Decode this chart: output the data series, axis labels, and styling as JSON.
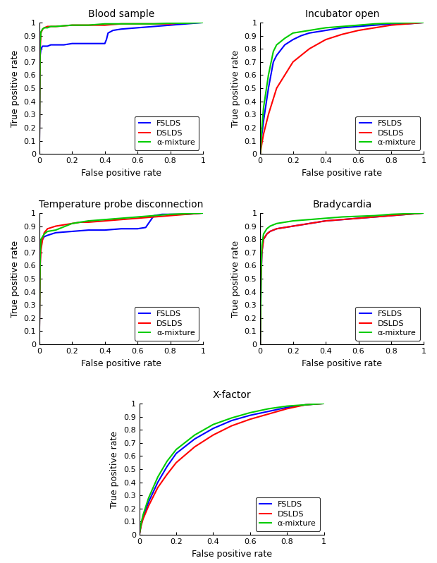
{
  "titles": [
    "Blood sample",
    "Incubator open",
    "Temperature probe disconnection",
    "Bradycardia",
    "X-factor"
  ],
  "colors": {
    "FSLDS": "#0000ff",
    "DSLDS": "#ff0000",
    "alpha_mixture": "#00cc00"
  },
  "legend_labels": [
    "FSLDS",
    "DSLDS",
    "α-mixture"
  ],
  "xlabel": "False positive rate",
  "ylabel": "True positive rate",
  "blood_sample": {
    "FSLDS": {
      "fpr": [
        0,
        0.005,
        0.01,
        0.02,
        0.03,
        0.05,
        0.07,
        0.1,
        0.15,
        0.2,
        0.3,
        0.4,
        0.41,
        0.42,
        0.45,
        0.5,
        0.6,
        0.7,
        0.8,
        0.9,
        1.0
      ],
      "tpr": [
        0,
        0.75,
        0.8,
        0.82,
        0.82,
        0.82,
        0.83,
        0.83,
        0.83,
        0.84,
        0.84,
        0.84,
        0.87,
        0.92,
        0.94,
        0.95,
        0.96,
        0.97,
        0.98,
        0.99,
        1.0
      ]
    },
    "DSLDS": {
      "fpr": [
        0,
        0.005,
        0.01,
        0.02,
        0.03,
        0.05,
        0.1,
        0.2,
        0.3,
        0.4,
        0.5,
        0.6,
        0.7,
        0.8,
        0.9,
        1.0
      ],
      "tpr": [
        0,
        0.8,
        0.92,
        0.95,
        0.96,
        0.97,
        0.97,
        0.98,
        0.98,
        0.98,
        0.99,
        0.99,
        0.99,
        0.99,
        1.0,
        1.0
      ]
    },
    "alpha_mixture": {
      "fpr": [
        0,
        0.005,
        0.01,
        0.02,
        0.03,
        0.05,
        0.07,
        0.1,
        0.2,
        0.3,
        0.4,
        0.5,
        0.6,
        0.7,
        0.8,
        0.9,
        1.0
      ],
      "tpr": [
        0,
        0.85,
        0.93,
        0.95,
        0.96,
        0.96,
        0.97,
        0.97,
        0.98,
        0.98,
        0.99,
        0.99,
        0.99,
        0.99,
        0.995,
        0.995,
        1.0
      ]
    }
  },
  "incubator_open": {
    "FSLDS": {
      "fpr": [
        0,
        0.01,
        0.02,
        0.05,
        0.08,
        0.1,
        0.15,
        0.2,
        0.25,
        0.3,
        0.4,
        0.5,
        0.6,
        0.7,
        0.8,
        0.9,
        1.0
      ],
      "tpr": [
        0,
        0.15,
        0.25,
        0.5,
        0.7,
        0.75,
        0.83,
        0.87,
        0.9,
        0.92,
        0.94,
        0.96,
        0.97,
        0.98,
        0.99,
        0.99,
        1.0
      ]
    },
    "DSLDS": {
      "fpr": [
        0,
        0.01,
        0.02,
        0.05,
        0.1,
        0.2,
        0.3,
        0.4,
        0.5,
        0.6,
        0.7,
        0.8,
        0.9,
        1.0
      ],
      "tpr": [
        0,
        0.08,
        0.15,
        0.3,
        0.5,
        0.7,
        0.8,
        0.87,
        0.91,
        0.94,
        0.96,
        0.98,
        0.99,
        1.0
      ]
    },
    "alpha_mixture": {
      "fpr": [
        0,
        0.005,
        0.01,
        0.02,
        0.05,
        0.08,
        0.1,
        0.15,
        0.2,
        0.3,
        0.4,
        0.5,
        0.6,
        0.7,
        0.8,
        0.9,
        1.0
      ],
      "tpr": [
        0,
        0.1,
        0.2,
        0.35,
        0.6,
        0.78,
        0.83,
        0.88,
        0.92,
        0.94,
        0.96,
        0.97,
        0.98,
        0.99,
        0.995,
        0.998,
        1.0
      ]
    }
  },
  "temp_probe": {
    "FSLDS": {
      "fpr": [
        0,
        0.005,
        0.01,
        0.02,
        0.03,
        0.05,
        0.1,
        0.2,
        0.3,
        0.4,
        0.5,
        0.6,
        0.65,
        0.7,
        0.75,
        0.8,
        0.9,
        1.0
      ],
      "tpr": [
        0.05,
        0.65,
        0.78,
        0.8,
        0.82,
        0.83,
        0.85,
        0.86,
        0.87,
        0.87,
        0.88,
        0.88,
        0.89,
        0.98,
        0.99,
        0.99,
        0.99,
        1.0
      ]
    },
    "DSLDS": {
      "fpr": [
        0,
        0.005,
        0.01,
        0.02,
        0.03,
        0.05,
        0.1,
        0.15,
        0.2,
        0.25,
        0.3,
        0.4,
        0.5,
        0.6,
        0.7,
        0.8,
        0.9,
        1.0
      ],
      "tpr": [
        0.05,
        0.6,
        0.72,
        0.8,
        0.85,
        0.88,
        0.9,
        0.91,
        0.92,
        0.93,
        0.93,
        0.94,
        0.95,
        0.96,
        0.97,
        0.98,
        0.99,
        1.0
      ]
    },
    "alpha_mixture": {
      "fpr": [
        0,
        0.005,
        0.01,
        0.02,
        0.03,
        0.05,
        0.1,
        0.2,
        0.3,
        0.4,
        0.5,
        0.6,
        0.7,
        0.8,
        0.9,
        1.0
      ],
      "tpr": [
        0.05,
        0.68,
        0.8,
        0.82,
        0.84,
        0.86,
        0.87,
        0.92,
        0.94,
        0.95,
        0.96,
        0.97,
        0.98,
        0.99,
        0.995,
        1.0
      ]
    }
  },
  "bradycardia": {
    "FSLDS": {
      "fpr": [
        0,
        0.005,
        0.01,
        0.02,
        0.04,
        0.06,
        0.08,
        0.1,
        0.2,
        0.3,
        0.4,
        0.5,
        0.6,
        0.7,
        0.8,
        0.9,
        1.0
      ],
      "tpr": [
        0,
        0.5,
        0.7,
        0.8,
        0.84,
        0.86,
        0.87,
        0.88,
        0.9,
        0.92,
        0.94,
        0.95,
        0.96,
        0.97,
        0.98,
        0.99,
        1.0
      ]
    },
    "DSLDS": {
      "fpr": [
        0,
        0.005,
        0.01,
        0.02,
        0.04,
        0.06,
        0.08,
        0.1,
        0.2,
        0.3,
        0.4,
        0.5,
        0.6,
        0.7,
        0.8,
        0.9,
        1.0
      ],
      "tpr": [
        0,
        0.5,
        0.7,
        0.8,
        0.84,
        0.86,
        0.87,
        0.88,
        0.9,
        0.92,
        0.94,
        0.95,
        0.96,
        0.97,
        0.98,
        0.99,
        1.0
      ]
    },
    "alpha_mixture": {
      "fpr": [
        0,
        0.005,
        0.01,
        0.02,
        0.04,
        0.06,
        0.08,
        0.1,
        0.2,
        0.3,
        0.4,
        0.5,
        0.6,
        0.7,
        0.8,
        0.9,
        1.0
      ],
      "tpr": [
        0,
        0.55,
        0.75,
        0.84,
        0.88,
        0.9,
        0.91,
        0.92,
        0.94,
        0.95,
        0.96,
        0.97,
        0.975,
        0.98,
        0.99,
        0.995,
        1.0
      ]
    }
  },
  "x_factor": {
    "FSLDS": {
      "fpr": [
        0,
        0.01,
        0.02,
        0.05,
        0.1,
        0.15,
        0.2,
        0.3,
        0.4,
        0.5,
        0.6,
        0.7,
        0.8,
        0.9,
        1.0
      ],
      "tpr": [
        0,
        0.08,
        0.13,
        0.25,
        0.4,
        0.52,
        0.62,
        0.73,
        0.81,
        0.87,
        0.91,
        0.94,
        0.97,
        0.99,
        1.0
      ]
    },
    "DSLDS": {
      "fpr": [
        0,
        0.01,
        0.02,
        0.05,
        0.1,
        0.15,
        0.2,
        0.3,
        0.4,
        0.5,
        0.6,
        0.7,
        0.8,
        0.9,
        1.0
      ],
      "tpr": [
        0,
        0.07,
        0.12,
        0.22,
        0.36,
        0.46,
        0.55,
        0.67,
        0.76,
        0.83,
        0.88,
        0.92,
        0.96,
        0.99,
        1.0
      ]
    },
    "alpha_mixture": {
      "fpr": [
        0,
        0.01,
        0.02,
        0.05,
        0.1,
        0.15,
        0.2,
        0.3,
        0.4,
        0.5,
        0.6,
        0.7,
        0.8,
        0.9,
        1.0
      ],
      "tpr": [
        0,
        0.09,
        0.15,
        0.28,
        0.44,
        0.56,
        0.65,
        0.76,
        0.84,
        0.89,
        0.93,
        0.96,
        0.98,
        0.99,
        1.0
      ]
    }
  }
}
